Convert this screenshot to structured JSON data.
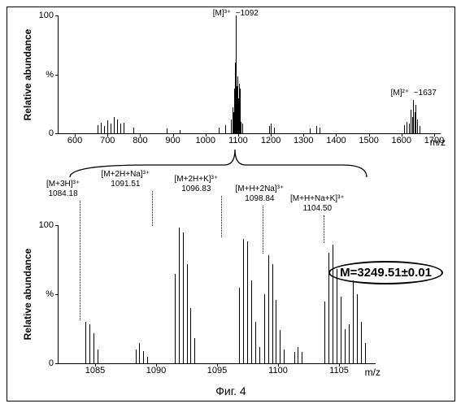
{
  "figure": {
    "caption": "Фиг. 4",
    "mass_label": "M=3249.51±0.01"
  },
  "top_chart": {
    "ylabel": "Relative abundance",
    "xlabel": "m/z",
    "ylim": [
      0,
      100
    ],
    "xlim": [
      550,
      1720
    ],
    "xticks": [
      600,
      700,
      800,
      900,
      1000,
      1100,
      1200,
      1300,
      1400,
      1500,
      1600,
      1700
    ],
    "yticks": [
      0,
      "%",
      100
    ],
    "peaks": {
      "main": {
        "x": 1092,
        "label_charge": "[M]³⁺",
        "label_mz": "~1092"
      },
      "second": {
        "x": 1637,
        "label_charge": "[M]²⁺",
        "label_mz": "~1637"
      }
    }
  },
  "bottom_chart": {
    "ylabel": "Relative abundance",
    "xlabel": "m/z",
    "ylim": [
      0,
      100
    ],
    "xlim": [
      1082,
      1108
    ],
    "xticks": [
      1085,
      1090,
      1095,
      1100,
      1105
    ],
    "yticks": [
      0,
      "%",
      100
    ],
    "annotations": [
      {
        "formula": "[M+3H]³⁺",
        "mz": "1084.18"
      },
      {
        "formula": "[M+2H+Na]³⁺",
        "mz": "1091.51"
      },
      {
        "formula": "[M+2H+K]³⁺",
        "mz": "1096.83"
      },
      {
        "formula": "[M+H+2Na]³⁺",
        "mz": "1098.84"
      },
      {
        "formula": "[M+H+Na+K]³⁺",
        "mz": "1104.50"
      }
    ]
  }
}
